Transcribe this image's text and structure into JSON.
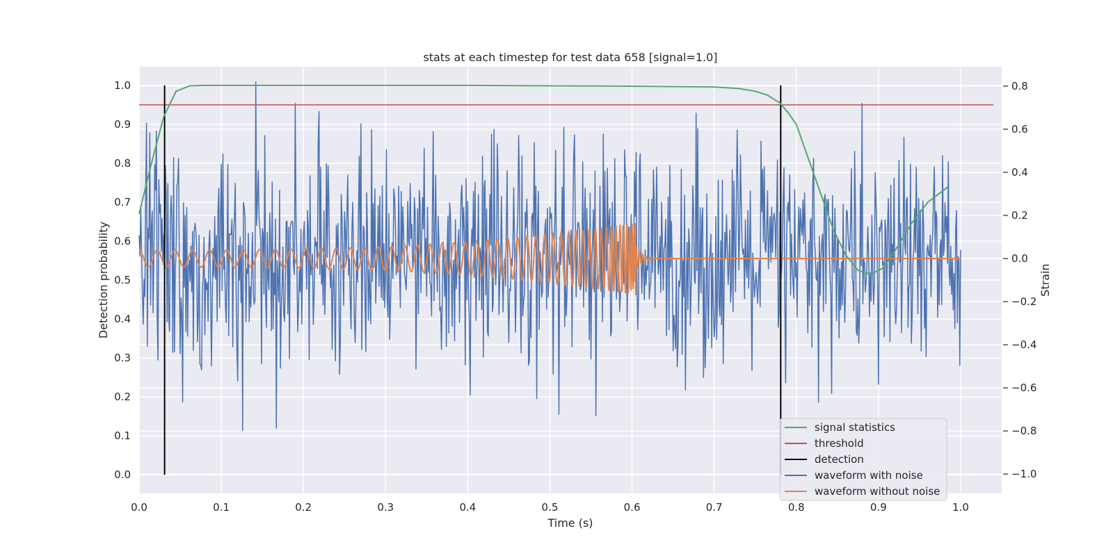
{
  "chart_data": {
    "type": "line",
    "title": "stats at each timestep for test data 658 [signal=1.0]",
    "xlabel": "Time (s)",
    "ylabel_left": "Detection probability",
    "ylabel_right": "Strain",
    "xlim": [
      0.0,
      1.05
    ],
    "ylim_left": [
      -0.048,
      1.048
    ],
    "ylim_right": [
      -1.09,
      0.89
    ],
    "grid": true,
    "legend_location": "lower right",
    "x_ticks": [
      "0.0",
      "0.1",
      "0.2",
      "0.3",
      "0.4",
      "0.5",
      "0.6",
      "0.7",
      "0.8",
      "0.9",
      "1.0"
    ],
    "y_left_ticks": [
      "0.0",
      "0.1",
      "0.2",
      "0.3",
      "0.4",
      "0.5",
      "0.6",
      "0.7",
      "0.8",
      "0.9",
      "1.0"
    ],
    "y_right_ticks": [
      "−1.0",
      "−0.8",
      "−0.6",
      "−0.4",
      "−0.2",
      "0.0",
      "0.2",
      "0.4",
      "0.6",
      "0.8"
    ],
    "colors": {
      "signal_statistics": "#55a868",
      "threshold": "#c44e52",
      "detection": "#000000",
      "waveform_with_noise": "#4c72b0",
      "waveform_without_noise": "#dd8452",
      "plot_background": "#eaeaf2",
      "grid": "#ffffff"
    },
    "series": [
      {
        "name": "signal statistics",
        "axis": "left",
        "x": [
          0.0,
          0.015,
          0.03,
          0.045,
          0.062,
          0.08,
          0.1,
          0.2,
          0.4,
          0.6,
          0.7,
          0.73,
          0.75,
          0.765,
          0.78,
          0.79,
          0.8,
          0.815,
          0.83,
          0.845,
          0.86,
          0.875,
          0.89,
          0.905,
          0.92,
          0.94,
          0.96,
          0.985
        ],
        "values": [
          0.67,
          0.8,
          0.92,
          0.985,
          0.999,
          1.0,
          1.0,
          1.0,
          1.0,
          0.998,
          0.996,
          0.992,
          0.985,
          0.975,
          0.955,
          0.93,
          0.9,
          0.81,
          0.72,
          0.63,
          0.565,
          0.525,
          0.515,
          0.53,
          0.575,
          0.645,
          0.7,
          0.74
        ]
      },
      {
        "name": "threshold",
        "axis": "left",
        "x": [
          0.0,
          1.04
        ],
        "values": [
          0.95,
          0.95
        ]
      },
      {
        "name": "detection",
        "axis": "left",
        "type": "vertical_lines",
        "x": [
          0.031,
          0.781
        ],
        "y_range": [
          0.0,
          1.0
        ]
      },
      {
        "name": "waveform with noise",
        "axis": "right",
        "note": "dense noise trace, 0.0–1.0 s, roughly -1.0 to 0.8"
      },
      {
        "name": "waveform without noise",
        "axis": "right",
        "note": "chirp: oscillation amplitude ~0.05 growing to ~0.17 near 0.6 s, then flat at 0.0"
      }
    ]
  },
  "legend": {
    "items": [
      {
        "label": "signal statistics",
        "color": "#55a868"
      },
      {
        "label": "threshold",
        "color": "#c44e52"
      },
      {
        "label": "detection",
        "color": "#000000"
      },
      {
        "label": "waveform with noise",
        "color": "#4c72b0"
      },
      {
        "label": "waveform without noise",
        "color": "#dd8452"
      }
    ]
  }
}
